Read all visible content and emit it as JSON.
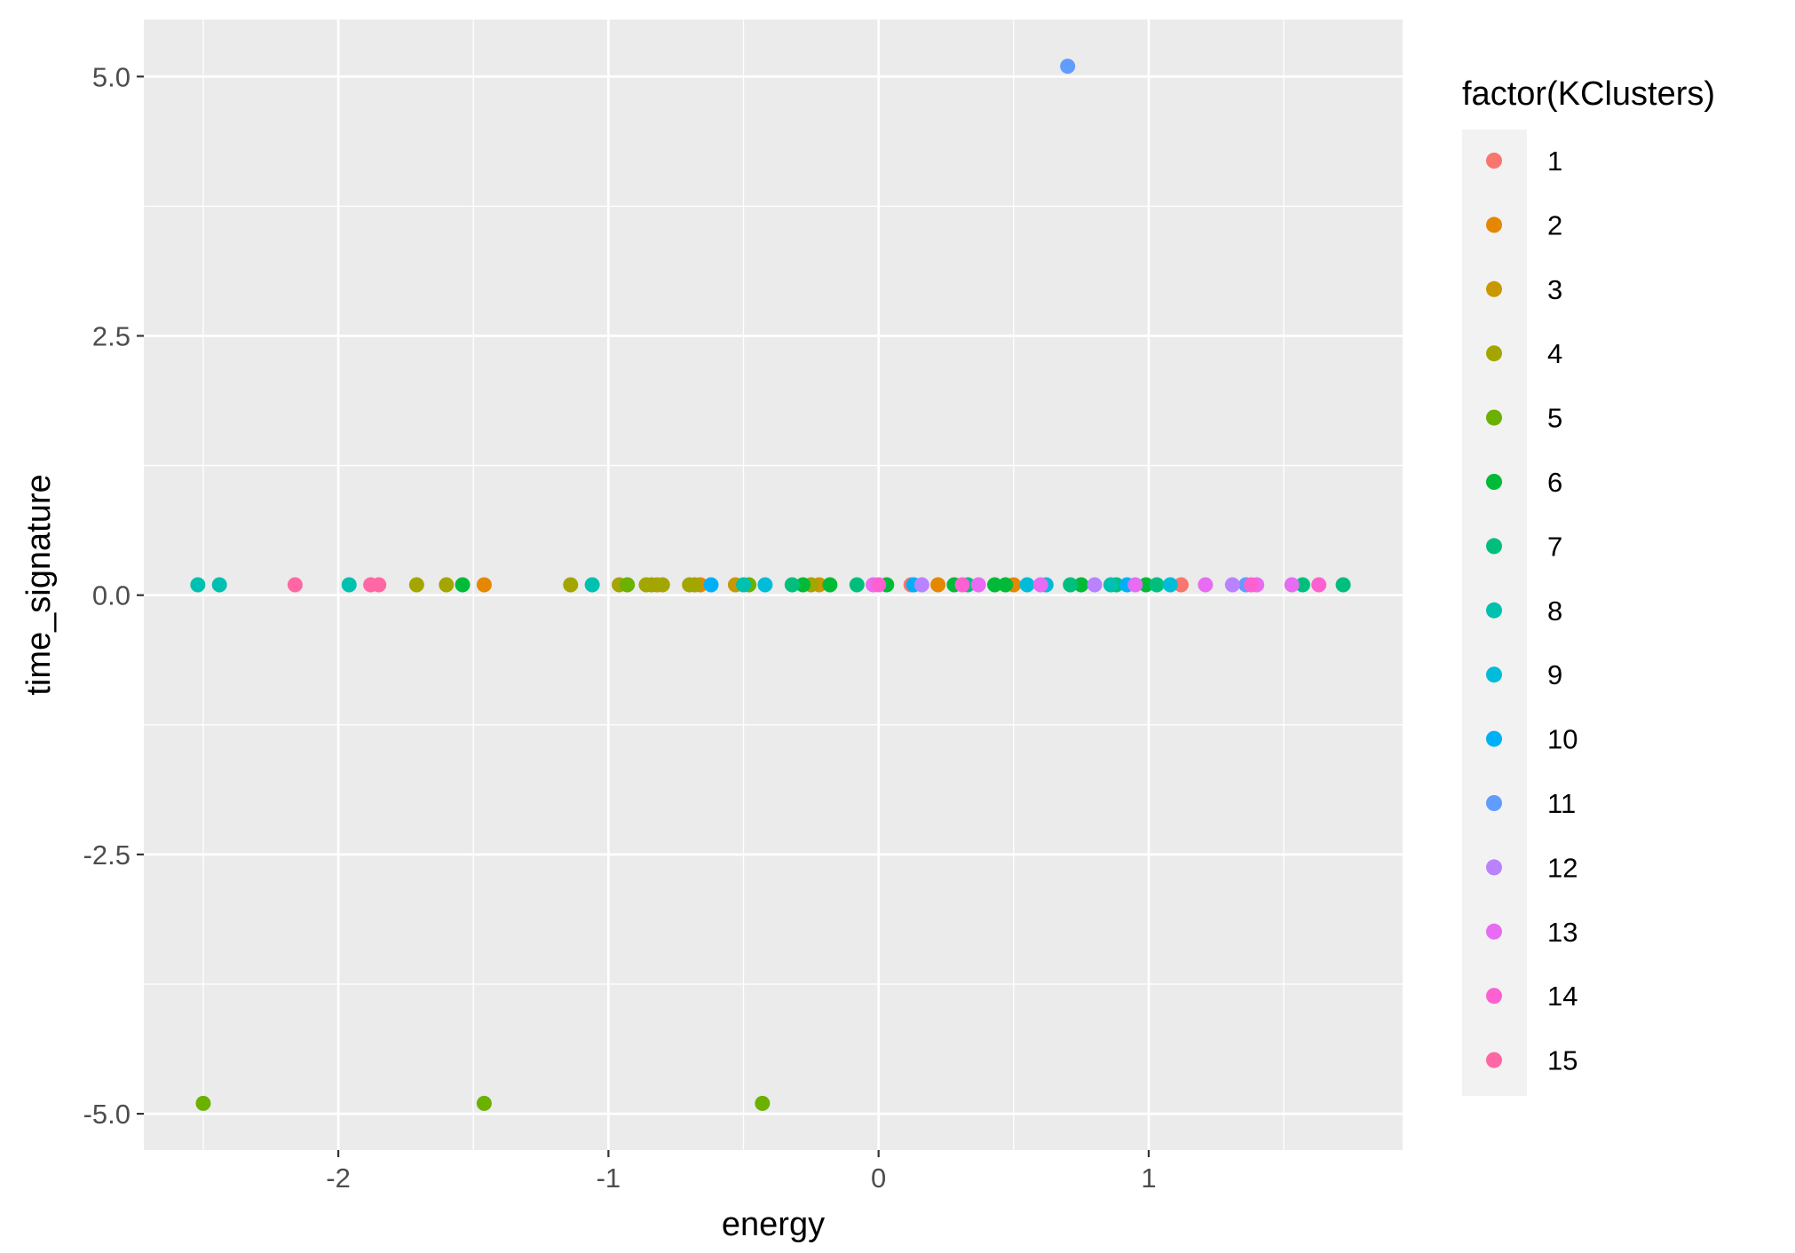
{
  "chart_data": {
    "type": "scatter",
    "title": "",
    "xlabel": "energy",
    "ylabel": "time_signature",
    "xlim": [
      -2.72,
      1.94
    ],
    "ylim": [
      -5.35,
      5.55
    ],
    "x_ticks": [
      -2,
      -1,
      0,
      1
    ],
    "x_tick_labels": [
      "-2",
      "-1",
      "0",
      "1"
    ],
    "y_ticks": [
      5.0,
      2.5,
      0.0,
      -2.5,
      -5.0
    ],
    "y_tick_labels": [
      "5.0",
      "2.5",
      "0.0",
      "-2.5",
      "-5.0"
    ],
    "grid": true,
    "legend": {
      "title": "factor(KClusters)",
      "position": "right",
      "entries": [
        "1",
        "2",
        "3",
        "4",
        "5",
        "6",
        "7",
        "8",
        "9",
        "10",
        "11",
        "12",
        "13",
        "14",
        "15"
      ]
    },
    "series": [
      {
        "name": "1",
        "color": "#F8766D",
        "points": [
          [
            0.12,
            0.1
          ],
          [
            1.12,
            0.1
          ]
        ]
      },
      {
        "name": "2",
        "color": "#E58700",
        "points": [
          [
            -1.46,
            0.1
          ],
          [
            0.22,
            0.1
          ],
          [
            0.5,
            0.1
          ],
          [
            -0.66,
            0.1
          ]
        ]
      },
      {
        "name": "3",
        "color": "#C99800",
        "points": [
          [
            -0.82,
            0.1
          ],
          [
            -0.53,
            0.1
          ],
          [
            -0.22,
            0.1
          ]
        ]
      },
      {
        "name": "4",
        "color": "#A3A500",
        "points": [
          [
            -1.71,
            0.1
          ],
          [
            -1.6,
            0.1
          ],
          [
            -1.14,
            0.1
          ],
          [
            -0.96,
            0.1
          ],
          [
            -0.86,
            0.1
          ],
          [
            -0.84,
            0.1
          ],
          [
            -0.8,
            0.1
          ],
          [
            -0.7,
            0.1
          ],
          [
            -0.68,
            0.1
          ],
          [
            -0.25,
            0.1
          ]
        ]
      },
      {
        "name": "5",
        "color": "#6BB100",
        "points": [
          [
            -2.5,
            -4.9
          ],
          [
            -1.46,
            -4.9
          ],
          [
            -0.43,
            -4.9
          ],
          [
            -0.93,
            0.1
          ],
          [
            -0.48,
            0.1
          ]
        ]
      },
      {
        "name": "6",
        "color": "#00BA38",
        "points": [
          [
            -1.54,
            0.1
          ],
          [
            -0.28,
            0.1
          ],
          [
            -0.18,
            0.1
          ],
          [
            0.03,
            0.1
          ],
          [
            0.28,
            0.1
          ],
          [
            0.43,
            0.1
          ],
          [
            0.47,
            0.1
          ],
          [
            0.75,
            0.1
          ],
          [
            0.99,
            0.1
          ]
        ]
      },
      {
        "name": "7",
        "color": "#00BF7D",
        "points": [
          [
            -0.32,
            0.1
          ],
          [
            -0.08,
            0.1
          ],
          [
            0.33,
            0.1
          ],
          [
            0.71,
            0.1
          ],
          [
            0.88,
            0.1
          ],
          [
            1.03,
            0.1
          ],
          [
            1.57,
            0.1
          ],
          [
            1.72,
            0.1
          ]
        ]
      },
      {
        "name": "8",
        "color": "#00C0AF",
        "points": [
          [
            -2.52,
            0.1
          ],
          [
            -2.44,
            0.1
          ],
          [
            -1.96,
            0.1
          ],
          [
            -1.06,
            0.1
          ],
          [
            -0.5,
            0.1
          ],
          [
            0.86,
            0.1
          ]
        ]
      },
      {
        "name": "9",
        "color": "#00BCD8",
        "points": [
          [
            -0.42,
            0.1
          ],
          [
            0.55,
            0.1
          ],
          [
            0.62,
            0.1
          ],
          [
            1.08,
            0.1
          ]
        ]
      },
      {
        "name": "10",
        "color": "#00B0F6",
        "points": [
          [
            -0.62,
            0.1
          ],
          [
            0.13,
            0.1
          ],
          [
            0.92,
            0.1
          ]
        ]
      },
      {
        "name": "11",
        "color": "#619CFF",
        "points": [
          [
            0.7,
            5.1
          ],
          [
            1.36,
            0.1
          ]
        ]
      },
      {
        "name": "12",
        "color": "#B983FF",
        "points": [
          [
            0.16,
            0.1
          ],
          [
            0.8,
            0.1
          ],
          [
            1.31,
            0.1
          ]
        ]
      },
      {
        "name": "13",
        "color": "#E76BF3",
        "points": [
          [
            -0.02,
            0.1
          ],
          [
            0.37,
            0.1
          ],
          [
            0.6,
            0.1
          ],
          [
            0.95,
            0.1
          ],
          [
            1.21,
            0.1
          ],
          [
            1.4,
            0.1
          ],
          [
            1.53,
            0.1
          ]
        ]
      },
      {
        "name": "14",
        "color": "#FD61D1",
        "points": [
          [
            0.0,
            0.1
          ],
          [
            0.31,
            0.1
          ],
          [
            1.38,
            0.1
          ],
          [
            1.63,
            0.1
          ]
        ]
      },
      {
        "name": "15",
        "color": "#FF67A4",
        "points": [
          [
            -2.16,
            0.1
          ],
          [
            -1.88,
            0.1
          ],
          [
            -1.85,
            0.1
          ]
        ]
      }
    ]
  }
}
